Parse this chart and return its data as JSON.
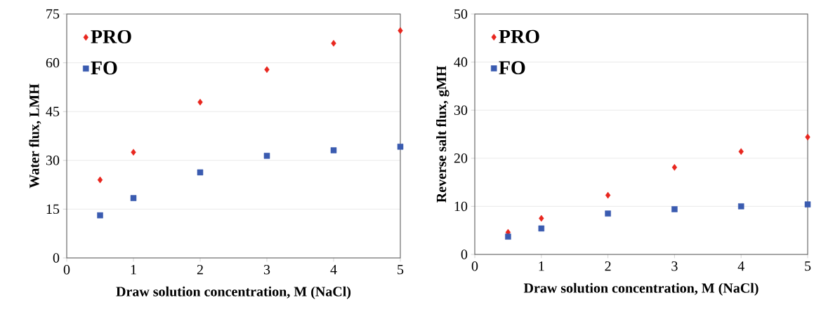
{
  "chart_data": [
    {
      "type": "scatter",
      "xlabel": "Draw solution concentration, M (NaCl)",
      "ylabel": "Water flux, LMH",
      "x": [
        0.5,
        1,
        2,
        3,
        4,
        5
      ],
      "xlim": [
        0,
        5
      ],
      "xticks": [
        0,
        1,
        2,
        3,
        4,
        5
      ],
      "ylim": [
        0,
        75
      ],
      "yticks": [
        0,
        15,
        30,
        45,
        60,
        75
      ],
      "grid": "y",
      "legend": "top left",
      "series": [
        {
          "name": "PRO",
          "color": "#e8261e",
          "marker": "diamond",
          "values": [
            24.0,
            32.5,
            47.9,
            57.9,
            66.0,
            69.9
          ]
        },
        {
          "name": "FO",
          "color": "#3a5bb0",
          "marker": "square",
          "values": [
            13.1,
            18.4,
            26.3,
            31.4,
            33.1,
            34.2
          ]
        }
      ]
    },
    {
      "type": "scatter",
      "xlabel": "Draw solution concentration, M (NaCl)",
      "ylabel": "Reverse salt flux, gMH",
      "x": [
        0.5,
        1,
        2,
        3,
        4,
        5
      ],
      "xlim": [
        0,
        5
      ],
      "xticks": [
        0,
        1,
        2,
        3,
        4,
        5
      ],
      "ylim": [
        0,
        50
      ],
      "yticks": [
        0,
        10,
        20,
        30,
        40,
        50
      ],
      "grid": "y",
      "legend": "top left",
      "series": [
        {
          "name": "PRO",
          "color": "#e8261e",
          "marker": "diamond",
          "values": [
            4.6,
            7.5,
            12.3,
            18.1,
            21.4,
            24.4
          ]
        },
        {
          "name": "FO",
          "color": "#3a5bb0",
          "marker": "square",
          "values": [
            3.7,
            5.4,
            8.5,
            9.4,
            10.0,
            10.4
          ]
        }
      ]
    }
  ]
}
